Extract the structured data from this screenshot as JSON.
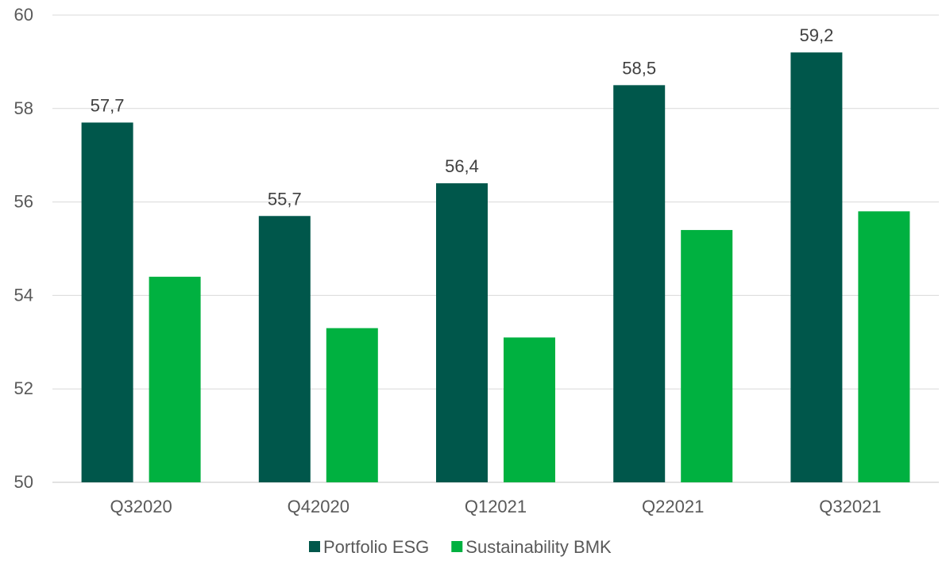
{
  "chart_data": {
    "type": "bar",
    "title": "",
    "xlabel": "",
    "ylabel": "",
    "categories": [
      "Q32020",
      "Q42020",
      "Q12021",
      "Q22021",
      "Q32021"
    ],
    "series": [
      {
        "name": "Portfolio ESG",
        "values": [
          57.7,
          55.7,
          56.4,
          58.5,
          59.2
        ],
        "value_labels": [
          "57,7",
          "55,7",
          "56,4",
          "58,5",
          "59,2"
        ],
        "color": "#00574b"
      },
      {
        "name": "Sustainability BMK",
        "values": [
          54.4,
          53.3,
          53.1,
          55.4,
          55.8
        ],
        "color": "#00b140"
      }
    ],
    "ylim": [
      50,
      60
    ],
    "yticks": [
      50,
      52,
      54,
      56,
      58,
      60
    ],
    "grid": true,
    "legend_position": "bottom"
  }
}
